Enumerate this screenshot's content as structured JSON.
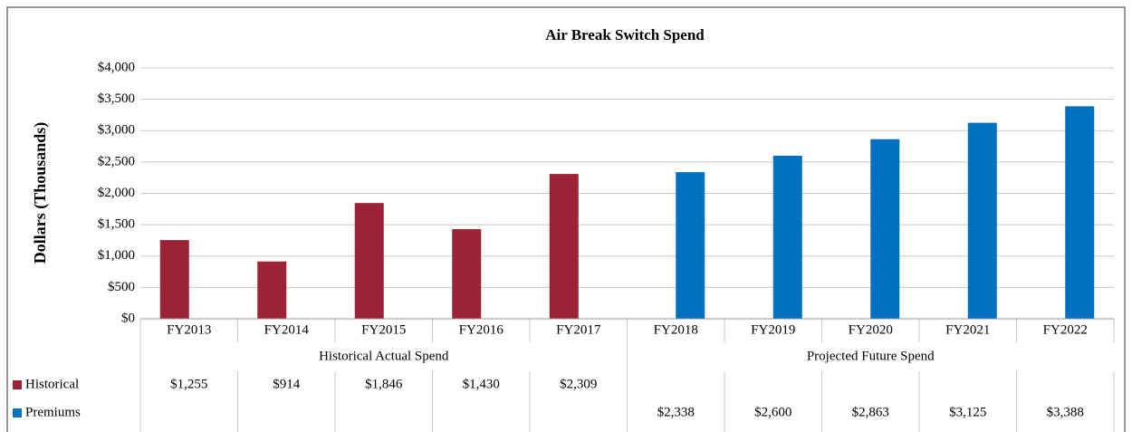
{
  "chart_data": {
    "type": "bar",
    "title": "Air Break Switch Spend",
    "y_label": "Dollars (Thousands)",
    "categories": [
      "FY2013",
      "FY2014",
      "FY2015",
      "FY2016",
      "FY2017",
      "FY2018",
      "FY2019",
      "FY2020",
      "FY2021",
      "FY2022"
    ],
    "groups": [
      {
        "label": "Historical Actual Spend",
        "span": 5
      },
      {
        "label": "Projected Future Spend",
        "span": 5
      }
    ],
    "series": [
      {
        "name": "Historical",
        "color": "#9b2335",
        "values": [
          1255,
          914,
          1846,
          1430,
          2309,
          null,
          null,
          null,
          null,
          null
        ],
        "value_labels": [
          "$1,255",
          "$914",
          "$1,846",
          "$1,430",
          "$2,309",
          null,
          null,
          null,
          null,
          null
        ]
      },
      {
        "name": "Premiums",
        "color": "#0070c0",
        "values": [
          null,
          null,
          null,
          null,
          null,
          2338,
          2600,
          2863,
          3125,
          3388
        ],
        "value_labels": [
          null,
          null,
          null,
          null,
          null,
          "$2,338",
          "$2,600",
          "$2,863",
          "$3,125",
          "$3,388"
        ]
      }
    ],
    "ylim": [
      0,
      4000
    ],
    "yticks": [
      {
        "value": 0,
        "label": "$0"
      },
      {
        "value": 500,
        "label": "$500"
      },
      {
        "value": 1000,
        "label": "$1,000"
      },
      {
        "value": 1500,
        "label": "$1,500"
      },
      {
        "value": 2000,
        "label": "$2,000"
      },
      {
        "value": 2500,
        "label": "$2,500"
      },
      {
        "value": 3000,
        "label": "$3,000"
      },
      {
        "value": 3500,
        "label": "$3,500"
      },
      {
        "value": 4000,
        "label": "$4,000"
      }
    ],
    "grid": true
  }
}
